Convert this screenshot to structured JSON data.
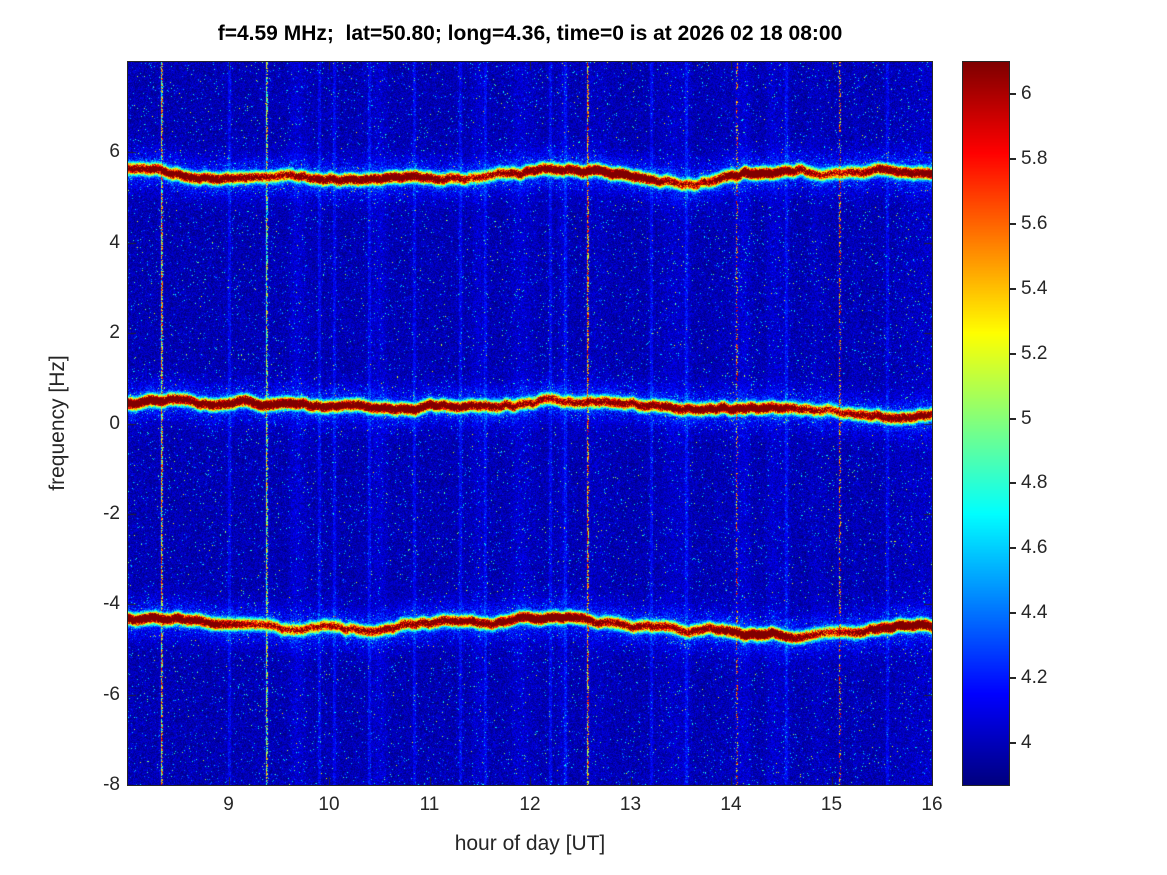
{
  "title": "f=4.59 MHz;  lat=50.80; long=4.36, time=0 is at 2026 02 18 08:00",
  "chart_data": {
    "type": "heatmap",
    "title": "f=4.59 MHz;  lat=50.80; long=4.36, time=0 is at 2026 02 18 08:00",
    "xlabel": "hour of day [UT]",
    "ylabel": "frequency [Hz]",
    "xlim": [
      8,
      16
    ],
    "ylim": [
      -8,
      8
    ],
    "x_ticks": [
      9,
      10,
      11,
      12,
      13,
      14,
      15,
      16
    ],
    "y_ticks": [
      6,
      4,
      2,
      0,
      -2,
      -4,
      -6,
      -8
    ],
    "grid": false,
    "colormap": "jet",
    "color_range": [
      3.87,
      6.1
    ],
    "colorbar_ticks": [
      4,
      4.2,
      4.4,
      4.6,
      4.8,
      5,
      5.2,
      5.4,
      5.6,
      5.8,
      6
    ],
    "background_noise_level": 4.0,
    "doppler_traces": [
      {
        "name": "upper-trace",
        "start_hz": 5.55,
        "drift_hz_per_hour": -0.015,
        "peak_value": 6.1,
        "core_width_hz": 0.09
      },
      {
        "name": "center-trace",
        "start_hz": 0.5,
        "drift_hz_per_hour": -0.02,
        "peak_value": 6.1,
        "core_width_hz": 0.1
      },
      {
        "name": "lower-trace",
        "start_hz": -4.35,
        "drift_hz_per_hour": -0.03,
        "peak_value": 6.1,
        "core_width_hz": 0.09
      }
    ],
    "interference_lines": [
      {
        "hour": 8.33,
        "density": 0.95,
        "min_level": 4.6,
        "max_level": 6.0
      },
      {
        "hour": 9.37,
        "density": 0.85,
        "min_level": 4.5,
        "max_level": 5.6
      },
      {
        "hour": 12.57,
        "density": 0.8,
        "min_level": 4.9,
        "max_level": 6.1
      },
      {
        "hour": 14.05,
        "density": 0.45,
        "min_level": 5.0,
        "max_level": 6.1
      },
      {
        "hour": 15.07,
        "density": 0.5,
        "min_level": 5.0,
        "max_level": 6.1
      }
    ],
    "faint_stripe_hours": [
      9.0,
      9.9,
      10.05,
      10.4,
      10.85,
      11.3,
      11.55,
      12.2,
      12.35,
      13.2,
      13.55,
      14.55,
      15.55
    ]
  }
}
